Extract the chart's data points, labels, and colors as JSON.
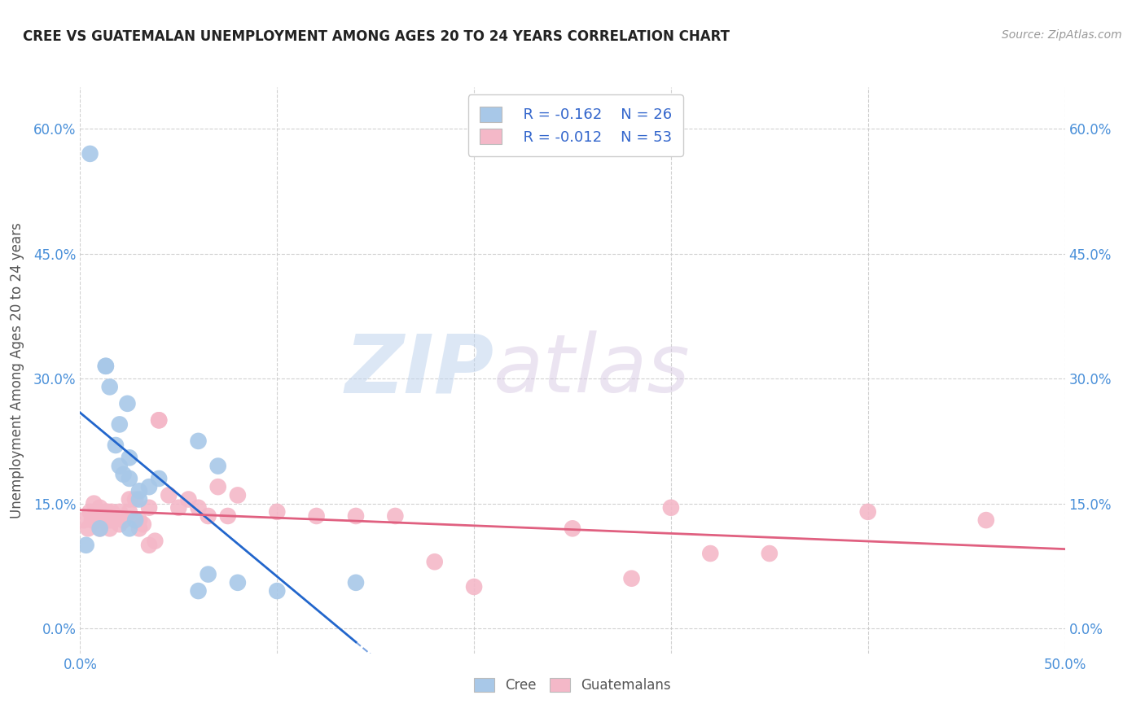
{
  "title": "CREE VS GUATEMALAN UNEMPLOYMENT AMONG AGES 20 TO 24 YEARS CORRELATION CHART",
  "source": "Source: ZipAtlas.com",
  "ylabel": "Unemployment Among Ages 20 to 24 years",
  "xlim": [
    0.0,
    0.5
  ],
  "ylim": [
    -0.03,
    0.65
  ],
  "yticks": [
    0.0,
    0.15,
    0.3,
    0.45,
    0.6
  ],
  "ytick_labels": [
    "0.0%",
    "15.0%",
    "30.0%",
    "45.0%",
    "60.0%"
  ],
  "cree_color": "#a8c8e8",
  "guatemalan_color": "#f4b8c8",
  "cree_line_color": "#2266cc",
  "guatemalan_line_color": "#e06080",
  "legend_r_cree": "-0.162",
  "legend_n_cree": "26",
  "legend_r_guatemalan": "-0.012",
  "legend_n_guatemalan": "53",
  "watermark_zip": "ZIP",
  "watermark_atlas": "atlas",
  "background_color": "#ffffff",
  "grid_color": "#cccccc",
  "cree_x": [
    0.003,
    0.005,
    0.01,
    0.013,
    0.013,
    0.015,
    0.018,
    0.02,
    0.02,
    0.022,
    0.024,
    0.025,
    0.025,
    0.025,
    0.028,
    0.03,
    0.03,
    0.035,
    0.04,
    0.06,
    0.06,
    0.065,
    0.07,
    0.08,
    0.1,
    0.14
  ],
  "cree_y": [
    0.1,
    0.57,
    0.12,
    0.315,
    0.315,
    0.29,
    0.22,
    0.245,
    0.195,
    0.185,
    0.27,
    0.12,
    0.18,
    0.205,
    0.13,
    0.165,
    0.155,
    0.17,
    0.18,
    0.225,
    0.045,
    0.065,
    0.195,
    0.055,
    0.045,
    0.055
  ],
  "guatemalan_x": [
    0.002,
    0.004,
    0.005,
    0.006,
    0.007,
    0.008,
    0.008,
    0.01,
    0.01,
    0.012,
    0.013,
    0.014,
    0.015,
    0.015,
    0.016,
    0.017,
    0.018,
    0.02,
    0.02,
    0.022,
    0.022,
    0.025,
    0.025,
    0.028,
    0.03,
    0.03,
    0.032,
    0.035,
    0.035,
    0.038,
    0.04,
    0.04,
    0.045,
    0.05,
    0.055,
    0.06,
    0.065,
    0.07,
    0.075,
    0.08,
    0.1,
    0.12,
    0.14,
    0.16,
    0.18,
    0.2,
    0.25,
    0.28,
    0.3,
    0.32,
    0.35,
    0.4,
    0.46
  ],
  "guatemalan_y": [
    0.13,
    0.12,
    0.14,
    0.13,
    0.15,
    0.14,
    0.13,
    0.145,
    0.12,
    0.13,
    0.14,
    0.14,
    0.12,
    0.13,
    0.14,
    0.13,
    0.135,
    0.14,
    0.125,
    0.13,
    0.13,
    0.155,
    0.14,
    0.155,
    0.13,
    0.12,
    0.125,
    0.145,
    0.1,
    0.105,
    0.25,
    0.25,
    0.16,
    0.145,
    0.155,
    0.145,
    0.135,
    0.17,
    0.135,
    0.16,
    0.14,
    0.135,
    0.135,
    0.135,
    0.08,
    0.05,
    0.12,
    0.06,
    0.145,
    0.09,
    0.09,
    0.14,
    0.13
  ],
  "cree_line_x_start": 0.0,
  "cree_line_x_end": 0.5,
  "guat_line_x_start": 0.0,
  "guat_line_x_end": 0.5
}
